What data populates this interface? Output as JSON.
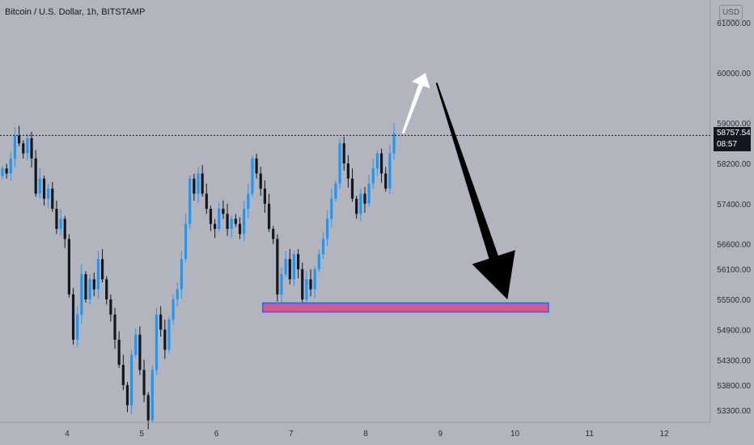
{
  "header": {
    "title": "Bitcoin / U.S. Dollar, 1h, BITSTAMP",
    "currency_badge": "USD"
  },
  "last_price": {
    "value": "58757.54",
    "countdown": "08:57",
    "price": 58757.54
  },
  "colors": {
    "up": "#2196f3",
    "down": "#131722",
    "background": "#b2b5be",
    "zone_fill": "#d25a8c",
    "zone_border": "#2962ff",
    "arrow_white": "#ffffff",
    "arrow_black": "#000000"
  },
  "chart_data": {
    "type": "candlestick",
    "x_ticks": [
      "4",
      "5",
      "6",
      "7",
      "8",
      "9",
      "10",
      "11",
      "12"
    ],
    "y_ticks": [
      "61000.00",
      "60000.00",
      "59000.00",
      "58200.00",
      "57400.00",
      "56600.00",
      "56100.00",
      "55500.00",
      "54900.00",
      "54300.00",
      "53800.00",
      "53300.00"
    ],
    "series": [
      {
        "name": "Bitcoin / U.S. Dollar",
        "ohlc_closes": [
          58100,
          58000,
          58300,
          58750,
          58600,
          58400,
          58700,
          58300,
          57600,
          57900,
          57500,
          57700,
          57300,
          56900,
          57100,
          56700,
          55600,
          54700,
          55200,
          56000,
          55500,
          55900,
          55700,
          56300,
          55900,
          55500,
          55200,
          54700,
          54200,
          53800,
          53400,
          54400,
          54800,
          54100,
          53600,
          53100,
          54100,
          55200,
          54900,
          54500,
          55100,
          55500,
          55700,
          56300,
          57000,
          57900,
          57600,
          58000,
          57600,
          57300,
          57000,
          56900,
          57300,
          57200,
          56900,
          57100,
          57000,
          56800,
          57300,
          57600,
          58300,
          58000,
          57700,
          57400,
          56900,
          56700,
          55600,
          56000,
          56300,
          55900,
          56400,
          56100,
          55500,
          55900,
          55700,
          56100,
          56400,
          56700,
          57100,
          57500,
          57800,
          58600,
          58200,
          57900,
          57500,
          57200,
          57600,
          57400,
          57800,
          58100,
          58400,
          58000,
          57700,
          58400,
          58800
        ]
      }
    ],
    "zone": {
      "label": "",
      "low": 55250,
      "high": 55430,
      "x_start": 6.62,
      "x_end": 10.45
    },
    "arrows": [
      {
        "color": "white",
        "from": [
          8.5,
          58800
        ],
        "to": [
          8.8,
          60000
        ]
      },
      {
        "color": "black",
        "from": [
          8.95,
          59800
        ],
        "to": [
          9.9,
          55500
        ]
      }
    ],
    "ylim": [
      53100,
      61400
    ],
    "xlim": [
      3.1,
      12.4
    ],
    "grid": false
  }
}
